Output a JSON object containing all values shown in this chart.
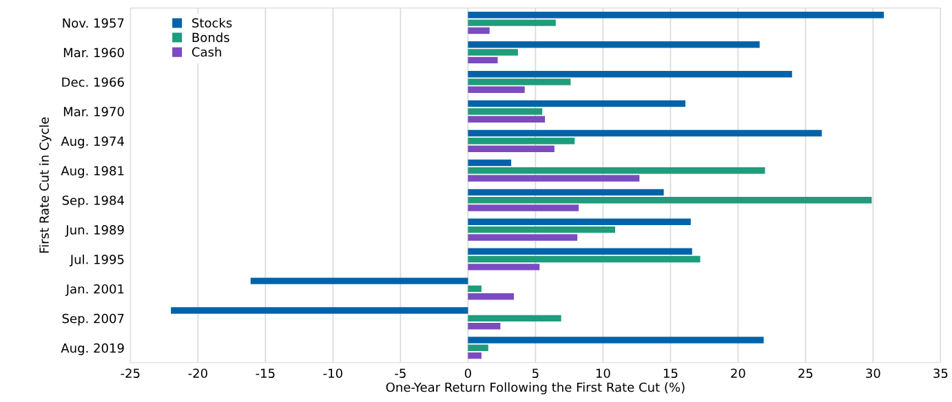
{
  "chart_data": {
    "type": "bar",
    "orientation": "horizontal",
    "xlabel": "One-Year Return Following the First Rate Cut (%)",
    "ylabel": "First Rate Cut in Cycle",
    "categories": [
      "Nov. 1957",
      "Mar. 1960",
      "Dec. 1966",
      "Mar. 1970",
      "Aug. 1974",
      "Aug. 1981",
      "Sep. 1984",
      "Jun. 1989",
      "Jul. 1995",
      "Jan. 2001",
      "Sep. 2007",
      "Aug. 2019"
    ],
    "series": [
      {
        "name": "Stocks",
        "color": "#0063a9",
        "values": [
          30.8,
          21.6,
          24.0,
          16.1,
          26.2,
          3.2,
          14.5,
          16.5,
          16.6,
          -16.1,
          -22.0,
          21.9
        ]
      },
      {
        "name": "Bonds",
        "color": "#1f9c7c",
        "values": [
          6.5,
          3.7,
          7.6,
          5.5,
          7.9,
          22.0,
          29.9,
          10.9,
          17.2,
          1.0,
          6.9,
          1.5
        ]
      },
      {
        "name": "Cash",
        "color": "#7b4bbf",
        "values": [
          1.6,
          2.2,
          4.2,
          5.7,
          6.4,
          12.7,
          8.2,
          8.1,
          5.3,
          3.4,
          2.4,
          1.0
        ]
      }
    ],
    "xlim": [
      -25,
      35
    ],
    "xticks": [
      -25,
      -20,
      -15,
      -10,
      -5,
      0,
      5,
      10,
      15,
      20,
      25,
      30,
      35
    ],
    "grid": "x",
    "legend": "top left"
  }
}
